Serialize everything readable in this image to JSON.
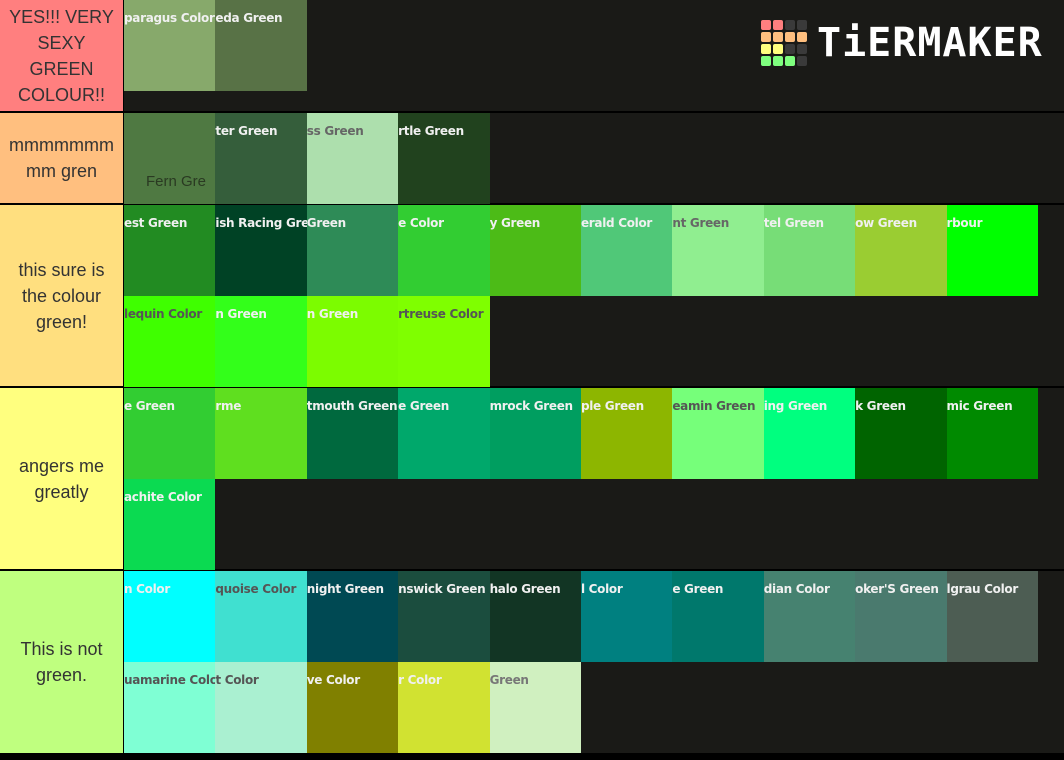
{
  "logo": {
    "text": "TiERMAKER",
    "grid_colors": [
      "#ff7f7f",
      "#ff7f7f",
      "#3a3a3a",
      "#3a3a3a",
      "#ffbf7f",
      "#ffbf7f",
      "#ffbf7f",
      "#ffbf7f",
      "#ffff7f",
      "#ffff7f",
      "#3a3a3a",
      "#3a3a3a",
      "#7fff7f",
      "#7fff7f",
      "#7fff7f",
      "#3a3a3a"
    ]
  },
  "tiers": [
    {
      "label": "YES!!! VERY SEXY GREEN COLOUR!!",
      "color": "#ff7f7f",
      "height": 113,
      "tiles": [
        {
          "name": "paragus Color",
          "bg": "#87a96b",
          "fg": "#f0f0f0"
        },
        {
          "name": "eda Green",
          "bg": "#587246",
          "fg": "#f0f0f0"
        }
      ]
    },
    {
      "label": "mmmmmmm mm gren",
      "color": "#ffbf7f",
      "height": 92,
      "tiles": [
        {
          "name": "",
          "bg": "#4f7942",
          "fg": "#f0f0f0",
          "big": "Fern Gre"
        },
        {
          "name": "ter Green",
          "bg": "#355e3b",
          "fg": "#f0f0f0"
        },
        {
          "name": "ss Green",
          "bg": "#addfad",
          "fg": "#666666"
        },
        {
          "name": "rtle Green",
          "bg": "#21421e",
          "fg": "#f0f0f0"
        }
      ]
    },
    {
      "label": "this sure is the colour green!",
      "color": "#ffdf7f",
      "height": 183,
      "tiles": [
        {
          "name": "est Green",
          "bg": "#228b22",
          "fg": "#f0f0f0"
        },
        {
          "name": "ish Racing Green",
          "bg": "#004225",
          "fg": "#f0f0f0"
        },
        {
          "name": "Green",
          "bg": "#2e8b57",
          "fg": "#f0f0f0"
        },
        {
          "name": "e Color",
          "bg": "#32cd32",
          "fg": "#f0f0f0"
        },
        {
          "name": "y Green",
          "bg": "#4cbb17",
          "fg": "#f0f0f0"
        },
        {
          "name": "erald Color",
          "bg": "#50c878",
          "fg": "#f0f0f0"
        },
        {
          "name": "nt Green",
          "bg": "#90ee90",
          "fg": "#666666"
        },
        {
          "name": "tel Green",
          "bg": "#77dd77",
          "fg": "#f0f0f0"
        },
        {
          "name": "ow Green",
          "bg": "#9acd32",
          "fg": "#f0f0f0"
        },
        {
          "name": "rbour",
          "bg": "#00ff00",
          "fg": "#f0f0f0"
        },
        {
          "name": "lequin Color",
          "bg": "#3fff00",
          "fg": "#555555"
        },
        {
          "name": "n Green",
          "bg": "#33ff1a",
          "fg": "#f0f0f0"
        },
        {
          "name": "n Green",
          "bg": "#7cfc00",
          "fg": "#f0f0f0"
        },
        {
          "name": "rtreuse Color",
          "bg": "#7fff00",
          "fg": "#555555"
        }
      ]
    },
    {
      "label": "angers me greatly",
      "color": "#ffff7f",
      "height": 183,
      "tiles": [
        {
          "name": "e Green",
          "bg": "#32cd32",
          "fg": "#f0f0f0"
        },
        {
          "name": "rme",
          "bg": "#5fdf1f",
          "fg": "#f0f0f0"
        },
        {
          "name": "tmouth Green",
          "bg": "#00693e",
          "fg": "#f0f0f0"
        },
        {
          "name": "e Green",
          "bg": "#00a86b",
          "fg": "#f0f0f0"
        },
        {
          "name": "mrock Green",
          "bg": "#009e60",
          "fg": "#f0f0f0"
        },
        {
          "name": "ple Green",
          "bg": "#8db600",
          "fg": "#f0f0f0"
        },
        {
          "name": "eamin Green",
          "bg": "#76ff7a",
          "fg": "#555555"
        },
        {
          "name": "ing Green",
          "bg": "#00ff7f",
          "fg": "#f0f0f0"
        },
        {
          "name": "k Green",
          "bg": "#006400",
          "fg": "#f0f0f0"
        },
        {
          "name": "mic Green",
          "bg": "#008a00",
          "fg": "#f0f0f0"
        },
        {
          "name": "achite Color",
          "bg": "#0bda51",
          "fg": "#f0f0f0"
        }
      ]
    },
    {
      "label": "This is not green.",
      "color": "#bfff7f",
      "height": 184,
      "tiles": [
        {
          "name": "n Color",
          "bg": "#00ffff",
          "fg": "#f0f0f0"
        },
        {
          "name": "quoise Color",
          "bg": "#40e0d0",
          "fg": "#555555"
        },
        {
          "name": "night Green",
          "bg": "#004953",
          "fg": "#f0f0f0"
        },
        {
          "name": "nswick Green",
          "bg": "#1b4d3e",
          "fg": "#f0f0f0"
        },
        {
          "name": "halo Green",
          "bg": "#123524",
          "fg": "#f0f0f0"
        },
        {
          "name": "l Color",
          "bg": "#008080",
          "fg": "#f0f0f0"
        },
        {
          "name": "e Green",
          "bg": "#00786c",
          "fg": "#f0f0f0"
        },
        {
          "name": "dian Color",
          "bg": "#468270",
          "fg": "#f0f0f0"
        },
        {
          "name": "oker'S Green",
          "bg": "#4a7a6e",
          "fg": "#f0f0f0"
        },
        {
          "name": "lgrau Color",
          "bg": "#4d5d53",
          "fg": "#f0f0f0"
        },
        {
          "name": "uamarine Color",
          "bg": "#7fffd4",
          "fg": "#555555"
        },
        {
          "name": "t Color",
          "bg": "#aaf0d1",
          "fg": "#555555"
        },
        {
          "name": "ve Color",
          "bg": "#808000",
          "fg": "#f0f0f0"
        },
        {
          "name": "r Color",
          "bg": "#d1e231",
          "fg": "#f0f0f0"
        },
        {
          "name": "Green",
          "bg": "#d0f0c0",
          "fg": "#777777"
        }
      ]
    }
  ]
}
